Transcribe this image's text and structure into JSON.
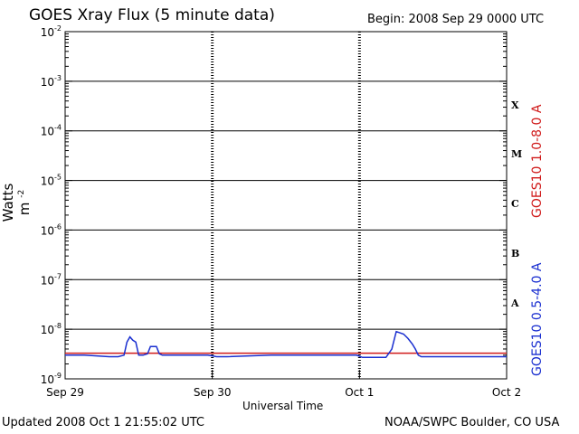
{
  "header": {
    "title": "GOES Xray Flux (5 minute data)",
    "begin": "Begin:  2008 Sep 29 0000 UTC"
  },
  "footer": {
    "updated": "Updated 2008 Oct  1 21:55:02 UTC",
    "credit": "NOAA/SWPC Boulder, CO USA"
  },
  "colors": {
    "long": "#d01a1a",
    "short": "#1a2fd0",
    "grid": "#000000"
  },
  "chart_data": {
    "type": "line",
    "title": "GOES Xray Flux (5 minute data)",
    "xlabel": "Universal Time",
    "ylabel": "Watts m",
    "ylabel_sup": "-2",
    "y_scale": "log",
    "ylim": [
      1e-09,
      0.01
    ],
    "xlim": [
      0,
      3
    ],
    "x_ticks": [
      "Sep 29",
      "Sep 30",
      "Oct 1",
      "Oct 2"
    ],
    "y_ticks": [
      {
        "base": "10",
        "exp": "-9"
      },
      {
        "base": "10",
        "exp": "-8"
      },
      {
        "base": "10",
        "exp": "-7"
      },
      {
        "base": "10",
        "exp": "-6"
      },
      {
        "base": "10",
        "exp": "-5"
      },
      {
        "base": "10",
        "exp": "-4"
      },
      {
        "base": "10",
        "exp": "-3"
      },
      {
        "base": "10",
        "exp": "-2"
      }
    ],
    "flare_classes": [
      "X",
      "M",
      "C",
      "B",
      "A"
    ],
    "grid": "horizontal at each decade",
    "series": [
      {
        "name": "GOES10 1.0-8.0 A",
        "color": "#d01a1a",
        "x": [
          0.0,
          0.97,
          1.03,
          1.98,
          2.02,
          3.0
        ],
        "values": [
          3.3e-09,
          3.3e-09,
          3.3e-09,
          3.3e-09,
          3.3e-09,
          3.3e-09
        ]
      },
      {
        "name": "GOES10 0.5-4.0 A",
        "color": "#1a2fd0",
        "x": [
          0.0,
          0.13,
          0.3,
          0.36,
          0.4,
          0.42,
          0.44,
          0.46,
          0.48,
          0.5,
          0.53,
          0.56,
          0.58,
          0.6,
          0.62,
          0.64,
          0.66,
          0.7,
          0.8,
          0.9,
          0.97,
          1.03,
          1.1,
          1.4,
          1.6,
          1.8,
          1.98,
          2.02,
          2.18,
          2.22,
          2.25,
          2.3,
          2.33,
          2.36,
          2.38,
          2.4,
          2.42,
          2.44,
          2.46,
          2.5,
          2.6,
          2.8,
          3.0
        ],
        "values": [
          3e-09,
          3e-09,
          2.8e-09,
          2.8e-09,
          3e-09,
          5.5e-09,
          7e-09,
          6e-09,
          5.5e-09,
          3e-09,
          3e-09,
          3.2e-09,
          4.5e-09,
          4.5e-09,
          4.5e-09,
          3.2e-09,
          3e-09,
          3e-09,
          3e-09,
          3e-09,
          3e-09,
          2.8e-09,
          2.8e-09,
          3e-09,
          3e-09,
          3e-09,
          3e-09,
          2.7e-09,
          2.7e-09,
          4e-09,
          9e-09,
          8e-09,
          6.5e-09,
          5e-09,
          4e-09,
          3e-09,
          2.8e-09,
          2.8e-09,
          2.8e-09,
          2.8e-09,
          2.8e-09,
          2.8e-09,
          2.8e-09
        ]
      }
    ]
  }
}
